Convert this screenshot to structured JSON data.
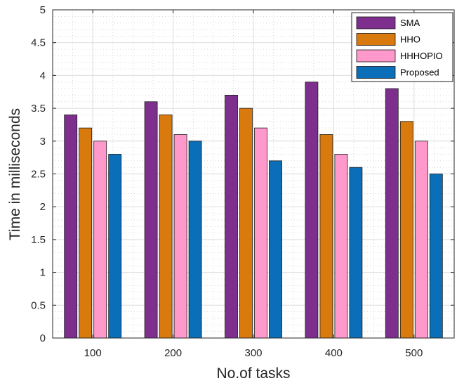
{
  "chart_data": {
    "type": "bar",
    "categories": [
      "100",
      "200",
      "300",
      "400",
      "500"
    ],
    "series": [
      {
        "name": "SMA",
        "values": [
          3.4,
          3.6,
          3.7,
          3.9,
          3.8
        ],
        "color": "#7e2f8e"
      },
      {
        "name": "HHO",
        "values": [
          3.2,
          3.4,
          3.5,
          3.1,
          3.3
        ],
        "color": "#d97a0f"
      },
      {
        "name": "HHHOPIO",
        "values": [
          3.0,
          3.1,
          3.2,
          2.8,
          3.0
        ],
        "color": "#ff99cc"
      },
      {
        "name": "Proposed",
        "values": [
          2.8,
          3.0,
          2.7,
          2.6,
          2.5
        ],
        "color": "#0a6fb8"
      }
    ],
    "xlabel": "No.of tasks",
    "ylabel": "Time in milliseconds",
    "ylim": [
      0,
      5
    ],
    "yticks": [
      "0",
      "0.5",
      "1",
      "1.5",
      "2",
      "2.5",
      "3",
      "3.5",
      "4",
      "4.5",
      "5"
    ],
    "grid": true,
    "minor_grid": true,
    "legend_position": "top-right"
  }
}
